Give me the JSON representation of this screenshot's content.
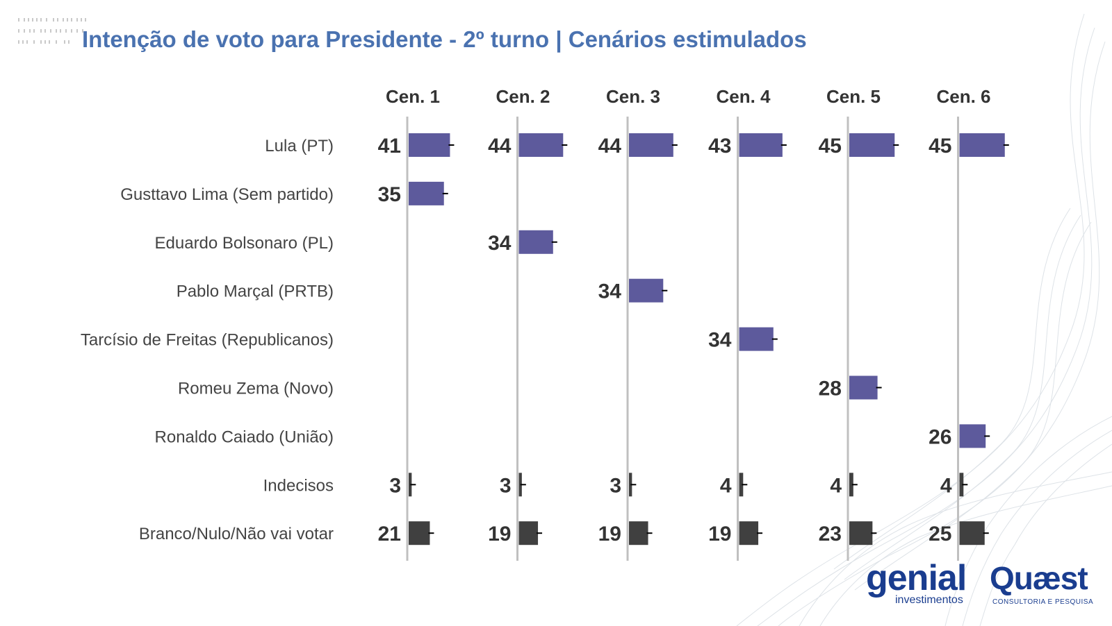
{
  "title": "Intenção de voto para Presidente - 2º turno | Cenários estimulados",
  "colors": {
    "title": "#4a72b0",
    "candidate_bar": "#5d5a9c",
    "other_bar": "#404040",
    "axis": "#c0c0c0",
    "value_text": "#333333",
    "label_text": "#444444"
  },
  "logos": {
    "genial_main": "genial",
    "genial_sub": "investimentos",
    "quaest_main": "Quæst",
    "quaest_sub": "CONSULTORIA E PESQUISA"
  },
  "chart_data": {
    "type": "bar",
    "orientation": "horizontal",
    "title": "Intenção de voto para Presidente - 2º turno | Cenários estimulados",
    "scenarios": [
      "Cen. 1",
      "Cen. 2",
      "Cen. 3",
      "Cen. 4",
      "Cen. 5",
      "Cen. 6"
    ],
    "categories": [
      "Lula (PT)",
      "Gusttavo Lima (Sem partido)",
      "Eduardo Bolsonaro (PL)",
      "Pablo Marçal (PRTB)",
      "Tarcísio de Freitas (Republicanos)",
      "Romeu Zema (Novo)",
      "Ronaldo Caiado (União)",
      "Indecisos",
      "Branco/Nulo/Não vai votar"
    ],
    "category_group": [
      "candidate",
      "candidate",
      "candidate",
      "candidate",
      "candidate",
      "candidate",
      "candidate",
      "other",
      "other"
    ],
    "series": [
      {
        "name": "Cen. 1",
        "values": [
          41,
          35,
          null,
          null,
          null,
          null,
          null,
          3,
          21
        ]
      },
      {
        "name": "Cen. 2",
        "values": [
          44,
          null,
          34,
          null,
          null,
          null,
          null,
          3,
          19
        ]
      },
      {
        "name": "Cen. 3",
        "values": [
          44,
          null,
          null,
          34,
          null,
          null,
          null,
          3,
          19
        ]
      },
      {
        "name": "Cen. 4",
        "values": [
          43,
          null,
          null,
          null,
          34,
          null,
          null,
          4,
          19
        ]
      },
      {
        "name": "Cen. 5",
        "values": [
          45,
          null,
          null,
          null,
          null,
          28,
          null,
          4,
          23
        ]
      },
      {
        "name": "Cen. 6",
        "values": [
          45,
          null,
          null,
          null,
          null,
          null,
          26,
          4,
          25
        ]
      }
    ],
    "error_bars": true,
    "xlabel": "",
    "ylabel": ""
  }
}
